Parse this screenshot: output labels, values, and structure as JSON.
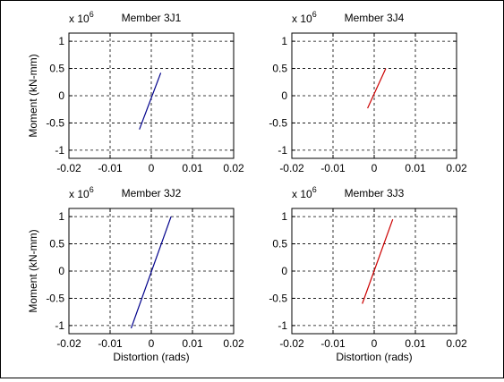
{
  "chart_data": [
    {
      "type": "line",
      "title": "Member 3J1",
      "xlabel": "",
      "ylabel": "Moment (kN-mm)",
      "exponent_label": {
        "base": "x 10",
        "exp": "6"
      },
      "xlim": [
        -0.02,
        0.02
      ],
      "ylim": [
        -1.15,
        1.15
      ],
      "xticks": [
        -0.02,
        -0.01,
        0,
        0.01,
        0.02
      ],
      "xtick_labels": [
        "-0.02",
        "-0.01",
        "0",
        "0.01",
        "0.02"
      ],
      "yticks": [
        1,
        0.5,
        0,
        -0.5,
        -1
      ],
      "ytick_labels": [
        "1",
        "0.5",
        "0",
        "-0.5",
        "-1"
      ],
      "grid": true,
      "series": [
        {
          "color": "#00008b",
          "x": [
            -0.0029,
            0.0023
          ],
          "y": [
            -0.62,
            0.42
          ]
        }
      ]
    },
    {
      "type": "line",
      "title": "Member 3J4",
      "xlabel": "",
      "ylabel": "",
      "exponent_label": {
        "base": "x 10",
        "exp": "6"
      },
      "xlim": [
        -0.02,
        0.02
      ],
      "ylim": [
        -1.15,
        1.15
      ],
      "xticks": [
        -0.02,
        -0.01,
        0,
        0.01,
        0.02
      ],
      "xtick_labels": [
        "-0.02",
        "-0.01",
        "0",
        "0.01",
        "0.02"
      ],
      "yticks": [
        1,
        0.5,
        0,
        -0.5,
        -1
      ],
      "ytick_labels": [
        "1",
        "0.5",
        "0",
        "-0.5",
        "-1"
      ],
      "grid": true,
      "series": [
        {
          "color": "#cc0000",
          "x": [
            -0.0016,
            0.0028
          ],
          "y": [
            -0.23,
            0.5
          ]
        }
      ]
    },
    {
      "type": "line",
      "title": "Member 3J2",
      "xlabel": "Distortion (rads)",
      "ylabel": "Moment (kN-mm)",
      "exponent_label": {
        "base": "x 10",
        "exp": "6"
      },
      "xlim": [
        -0.02,
        0.02
      ],
      "ylim": [
        -1.15,
        1.15
      ],
      "xticks": [
        -0.02,
        -0.01,
        0,
        0.01,
        0.02
      ],
      "xtick_labels": [
        "-0.02",
        "-0.01",
        "0",
        "0.01",
        "0.02"
      ],
      "yticks": [
        1,
        0.5,
        0,
        -0.5,
        -1
      ],
      "ytick_labels": [
        "1",
        "0.5",
        "0",
        "-0.5",
        "-1"
      ],
      "grid": true,
      "series": [
        {
          "color": "#00008b",
          "x": [
            -0.0049,
            0.0048
          ],
          "y": [
            -1.05,
            1.0
          ]
        }
      ]
    },
    {
      "type": "line",
      "title": "Member 3J3",
      "xlabel": "Distortion (rads)",
      "ylabel": "",
      "exponent_label": {
        "base": "x 10",
        "exp": "6"
      },
      "xlim": [
        -0.02,
        0.02
      ],
      "ylim": [
        -1.15,
        1.15
      ],
      "xticks": [
        -0.02,
        -0.01,
        0,
        0.01,
        0.02
      ],
      "xtick_labels": [
        "-0.02",
        "-0.01",
        "0",
        "0.01",
        "0.02"
      ],
      "yticks": [
        1,
        0.5,
        0,
        -0.5,
        -1
      ],
      "ytick_labels": [
        "1",
        "0.5",
        "0",
        "-0.5",
        "-1"
      ],
      "grid": true,
      "series": [
        {
          "color": "#cc0000",
          "x": [
            -0.0029,
            0.0045
          ],
          "y": [
            -0.6,
            0.95
          ]
        }
      ]
    }
  ]
}
